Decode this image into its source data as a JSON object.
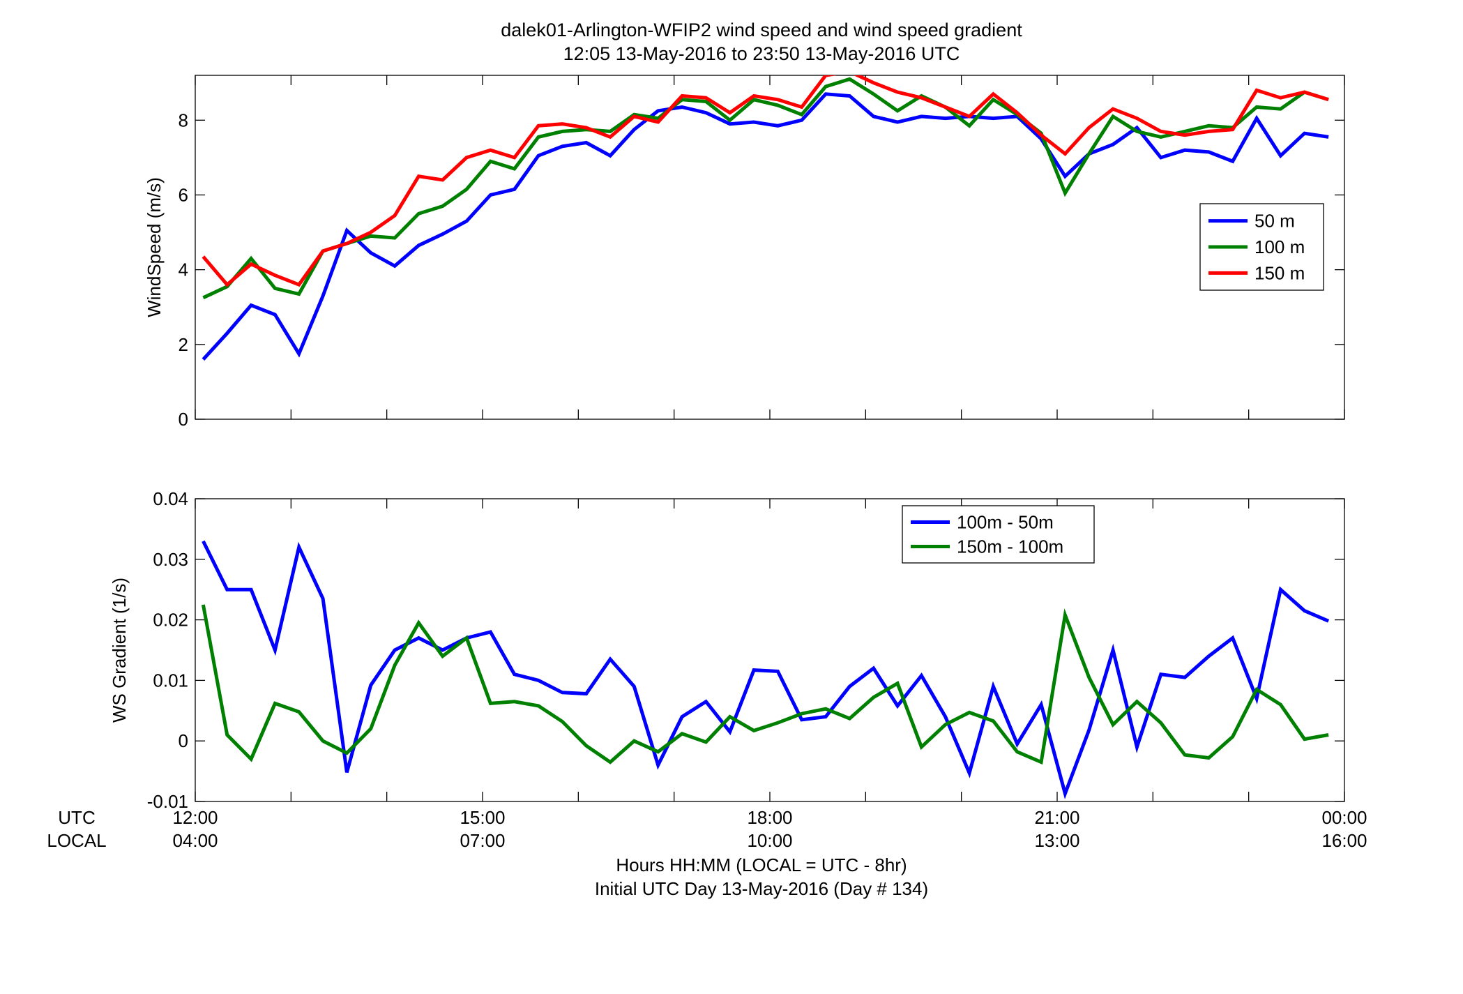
{
  "titles": [
    "dalek01-Arlington-WFIP2  wind speed and wind speed gradient",
    "12:05 13-May-2016 to 23:50 13-May-2016  UTC"
  ],
  "xaxis": {
    "row_labels": [
      "UTC",
      "LOCAL"
    ],
    "ticks_utc": [
      "12:00",
      "15:00",
      "18:00",
      "21:00",
      "00:00"
    ],
    "ticks_local": [
      "04:00",
      "07:00",
      "10:00",
      "13:00",
      "16:00"
    ],
    "label": [
      "Hours HH:MM  (LOCAL = UTC - 8hr)",
      "Initial UTC Day 13-May-2016 (Day # 134)"
    ]
  },
  "colors": {
    "blue": "#0000ff",
    "green": "#008000",
    "red": "#ff0000"
  },
  "chart_data": [
    {
      "type": "line",
      "title": "",
      "xlabel": "",
      "ylabel": "WindSpeed (m/s)",
      "xlim": [
        12,
        24
      ],
      "ylim": [
        0,
        9.2
      ],
      "yticks": [
        0,
        2,
        4,
        6,
        8
      ],
      "ytick_labels": [
        "0",
        "2",
        "4",
        "6",
        "8"
      ],
      "legend": "right",
      "x": [
        12.083,
        12.333,
        12.583,
        12.833,
        13.083,
        13.333,
        13.583,
        13.833,
        14.083,
        14.333,
        14.583,
        14.833,
        15.083,
        15.333,
        15.583,
        15.833,
        16.083,
        16.333,
        16.583,
        16.833,
        17.083,
        17.333,
        17.583,
        17.833,
        18.083,
        18.333,
        18.583,
        18.833,
        19.083,
        19.333,
        19.583,
        19.833,
        20.083,
        20.333,
        20.583,
        20.833,
        21.083,
        21.333,
        21.583,
        21.833,
        22.083,
        22.333,
        22.583,
        22.833,
        23.083,
        23.333,
        23.583,
        23.833
      ],
      "series": [
        {
          "name": "50 m",
          "color": "#0000ff",
          "values": [
            1.6,
            2.3,
            3.05,
            2.8,
            1.75,
            3.3,
            5.05,
            4.45,
            4.1,
            4.65,
            4.95,
            5.3,
            6.0,
            6.15,
            7.05,
            7.3,
            7.4,
            7.05,
            7.75,
            8.25,
            8.35,
            8.2,
            7.9,
            7.95,
            7.85,
            8.0,
            8.7,
            8.65,
            8.1,
            7.95,
            8.1,
            8.05,
            8.1,
            8.05,
            8.1,
            7.5,
            6.5,
            7.1,
            7.35,
            7.8,
            7.0,
            7.2,
            7.15,
            6.9,
            8.05,
            7.05,
            7.65,
            7.55
          ]
        },
        {
          "name": "100 m",
          "color": "#008000",
          "values": [
            3.25,
            3.55,
            4.3,
            3.5,
            3.35,
            4.5,
            4.7,
            4.9,
            4.85,
            5.5,
            5.7,
            6.15,
            6.9,
            6.7,
            7.55,
            7.7,
            7.75,
            7.7,
            8.15,
            8.05,
            8.55,
            8.5,
            8.0,
            8.55,
            8.4,
            8.15,
            8.9,
            9.1,
            8.7,
            8.25,
            8.65,
            8.35,
            7.85,
            8.55,
            8.15,
            7.65,
            6.05,
            7.1,
            8.1,
            7.7,
            7.55,
            7.7,
            7.85,
            7.8,
            8.35,
            8.3,
            8.75,
            8.55
          ]
        },
        {
          "name": "150 m",
          "color": "#ff0000",
          "values": [
            4.35,
            3.6,
            4.15,
            3.85,
            3.6,
            4.5,
            4.7,
            5.0,
            5.45,
            6.5,
            6.4,
            7.0,
            7.2,
            7.0,
            7.85,
            7.9,
            7.8,
            7.55,
            8.1,
            7.95,
            8.65,
            8.6,
            8.2,
            8.65,
            8.55,
            8.35,
            9.2,
            9.3,
            9.0,
            8.75,
            8.6,
            8.35,
            8.1,
            8.7,
            8.2,
            7.6,
            7.1,
            7.8,
            8.3,
            8.05,
            7.7,
            7.6,
            7.7,
            7.75,
            8.8,
            8.6,
            8.75,
            8.55
          ]
        }
      ]
    },
    {
      "type": "line",
      "title": "",
      "xlabel": "",
      "ylabel": "WS Gradient (1/s)",
      "xlim": [
        12,
        24
      ],
      "ylim": [
        -0.01,
        0.04
      ],
      "yticks": [
        -0.01,
        0,
        0.01,
        0.02,
        0.03,
        0.04
      ],
      "ytick_labels": [
        "-0.01",
        "0",
        "0.01",
        "0.02",
        "0.03",
        "0.04"
      ],
      "legend": "top-right",
      "x": [
        12.083,
        12.333,
        12.583,
        12.833,
        13.083,
        13.333,
        13.583,
        13.833,
        14.083,
        14.333,
        14.583,
        14.833,
        15.083,
        15.333,
        15.583,
        15.833,
        16.083,
        16.333,
        16.583,
        16.833,
        17.083,
        17.333,
        17.583,
        17.833,
        18.083,
        18.333,
        18.583,
        18.833,
        19.083,
        19.333,
        19.583,
        19.833,
        20.083,
        20.333,
        20.583,
        20.833,
        21.083,
        21.333,
        21.583,
        21.833,
        22.083,
        22.333,
        22.583,
        22.833,
        23.083,
        23.333,
        23.583,
        23.833
      ],
      "series": [
        {
          "name": "100m - 50m",
          "color": "#0000ff",
          "values": [
            0.033,
            0.025,
            0.025,
            0.015,
            0.032,
            0.0235,
            -0.0052,
            0.0092,
            0.015,
            0.017,
            0.015,
            0.017,
            0.018,
            0.011,
            0.01,
            0.008,
            0.0078,
            0.0135,
            0.009,
            -0.004,
            0.004,
            0.0065,
            0.0015,
            0.0117,
            0.0115,
            0.0035,
            0.004,
            0.009,
            0.012,
            0.0058,
            0.0108,
            0.004,
            -0.0053,
            0.009,
            -0.0005,
            0.006,
            -0.0087,
            0.0018,
            0.015,
            -0.001,
            0.011,
            0.0105,
            0.014,
            0.017,
            0.007,
            0.025,
            0.0215,
            0.0198
          ]
        },
        {
          "name": "150m - 100m",
          "color": "#008000",
          "values": [
            0.0225,
            0.001,
            -0.003,
            0.0062,
            0.0048,
            0.0,
            -0.002,
            0.002,
            0.0125,
            0.0195,
            0.014,
            0.017,
            0.0062,
            0.0065,
            0.0058,
            0.0032,
            -0.0008,
            -0.0035,
            0.0,
            -0.0018,
            0.0012,
            -0.0002,
            0.004,
            0.0017,
            0.003,
            0.0045,
            0.0053,
            0.0037,
            0.0072,
            0.0095,
            -0.001,
            0.0027,
            0.0047,
            0.0033,
            -0.0018,
            -0.0035,
            0.0208,
            0.0105,
            0.0027,
            0.0065,
            0.003,
            -0.0023,
            -0.0028,
            0.0007,
            0.0085,
            0.006,
            0.0003,
            0.001
          ]
        }
      ]
    }
  ]
}
